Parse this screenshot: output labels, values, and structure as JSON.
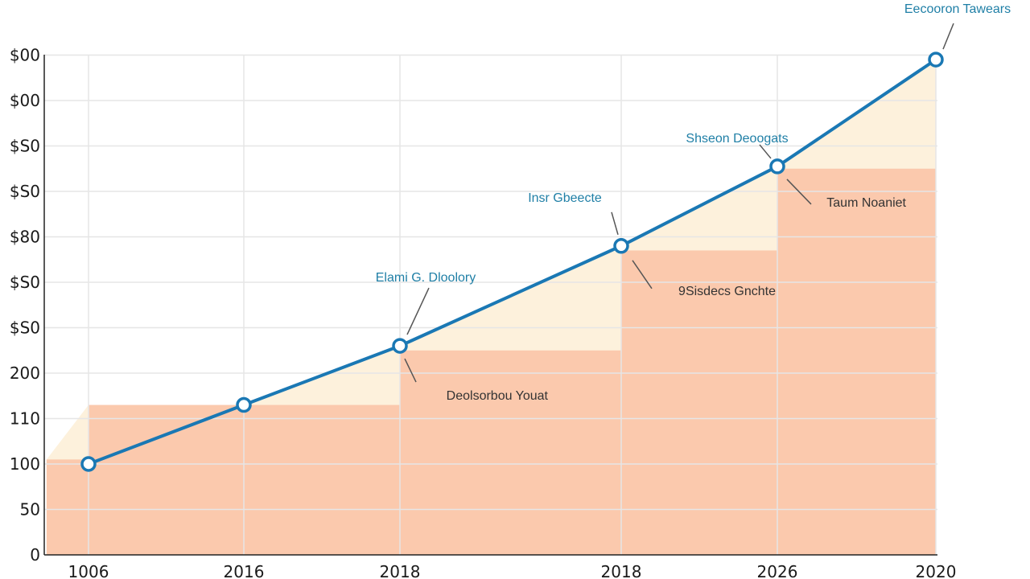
{
  "chart_data": {
    "type": "line",
    "title": "",
    "xlabel": "",
    "ylabel": "",
    "y_tick_labels": [
      "0",
      "50",
      "100",
      "110",
      "200",
      "$S0",
      "$S0",
      "$80",
      "$S0",
      "$S0",
      "$00",
      "$00"
    ],
    "x_tick_labels": [
      "1006",
      "2016",
      "2018",
      "2018",
      "2026",
      "2020"
    ],
    "line_series": {
      "points": [
        {
          "x_index": 0,
          "y_index": 2.0
        },
        {
          "x_index": 1,
          "y_index": 3.3
        },
        {
          "x_index": 2,
          "y_index": 4.6
        },
        {
          "x_index": 3,
          "y_index": 6.8
        },
        {
          "x_index": 4,
          "y_index": 8.55
        },
        {
          "x_index": 5,
          "y_index": 10.9
        }
      ],
      "color": "#1a78b4"
    },
    "steps": [
      {
        "from_x_index": -0.27,
        "to_x_index": 0,
        "level": 2.1
      },
      {
        "from_x_index": 0,
        "to_x_index": 1,
        "level": 3.3
      },
      {
        "from_x_index": 1,
        "to_x_index": 2,
        "level": 3.3
      },
      {
        "from_x_index": 2,
        "to_x_index": 3,
        "level": 4.5
      },
      {
        "from_x_index": 3,
        "to_x_index": 4,
        "level": 6.7
      },
      {
        "from_x_index": 4,
        "to_x_index": 5,
        "level": 8.5
      }
    ],
    "annotations": [
      {
        "text": "Eecooron Tawears",
        "point_index": 5,
        "style": "blue"
      },
      {
        "text": "Shseon Deoogats",
        "point_index": 4,
        "style": "blue"
      },
      {
        "text": "Taum Noaniet",
        "point_index": 4,
        "style": "dark"
      },
      {
        "text": "Insr Gbeecte",
        "point_index": 3,
        "style": "blue"
      },
      {
        "text": "9Sisdecs Gnchte",
        "point_index": 3,
        "style": "dark"
      },
      {
        "text": "Elami G. Dloolory",
        "point_index": 2,
        "style": "blue"
      },
      {
        "text": "Deolsorbou Youat",
        "point_index": 2,
        "style": "dark"
      }
    ],
    "grid": true,
    "legend": "none",
    "colors": {
      "line": "#1a78b4",
      "step_fill": "#fbc9ad",
      "wedge_fill": "#fdf1dc",
      "grid": "#e6e6e6",
      "axis": "#222222"
    }
  }
}
